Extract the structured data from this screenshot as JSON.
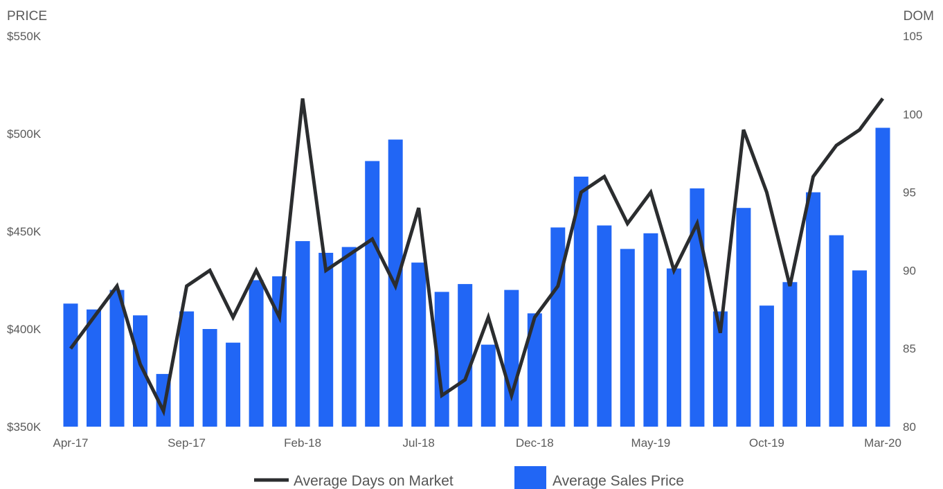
{
  "chart_data": {
    "type": "bar",
    "left_axis_title": "PRICE",
    "right_axis_title": "DOM",
    "left_axis": {
      "min": 350000,
      "max": 550000,
      "ticks": [
        350000,
        400000,
        450000,
        500000,
        550000
      ],
      "tick_labels": [
        "$350K",
        "$400K",
        "$450K",
        "$500K",
        "$550K"
      ]
    },
    "right_axis": {
      "min": 80,
      "max": 105,
      "ticks": [
        80,
        85,
        90,
        95,
        100,
        105
      ],
      "tick_labels": [
        "80",
        "85",
        "90",
        "95",
        "100",
        "105"
      ]
    },
    "categories": [
      "Apr-17",
      "May-17",
      "Jun-17",
      "Jul-17",
      "Aug-17",
      "Sep-17",
      "Oct-17",
      "Nov-17",
      "Dec-17",
      "Jan-18",
      "Feb-18",
      "Mar-18",
      "Apr-18",
      "May-18",
      "Jun-18",
      "Jul-18",
      "Aug-18",
      "Sep-18",
      "Oct-18",
      "Nov-18",
      "Dec-18",
      "Jan-19",
      "Feb-19",
      "Mar-19",
      "Apr-19",
      "May-19",
      "Jun-19",
      "Jul-19",
      "Aug-19",
      "Sep-19",
      "Oct-19",
      "Nov-19",
      "Dec-19",
      "Jan-20",
      "Feb-20",
      "Mar-20"
    ],
    "x_tick_labels": [
      {
        "index": 0,
        "label": "Apr-17"
      },
      {
        "index": 5,
        "label": "Sep-17"
      },
      {
        "index": 10,
        "label": "Feb-18"
      },
      {
        "index": 15,
        "label": "Jul-18"
      },
      {
        "index": 20,
        "label": "Dec-18"
      },
      {
        "index": 25,
        "label": "May-19"
      },
      {
        "index": 30,
        "label": "Oct-19"
      },
      {
        "index": 35,
        "label": "Mar-20"
      }
    ],
    "series": [
      {
        "name": "Average Sales Price",
        "kind": "bar",
        "axis": "left",
        "color": "#2166f5",
        "values": [
          413000,
          410000,
          420000,
          407000,
          377000,
          409000,
          400000,
          393000,
          425000,
          427000,
          445000,
          439000,
          442000,
          486000,
          497000,
          434000,
          419000,
          423000,
          392000,
          420000,
          408000,
          452000,
          478000,
          453000,
          441000,
          449000,
          431000,
          472000,
          409000,
          462000,
          412000,
          424000,
          470000,
          448000,
          430000,
          503000
        ]
      },
      {
        "name": "Average Days on Market",
        "kind": "line",
        "axis": "right",
        "color": "#2b2d2f",
        "values": [
          85,
          87,
          89,
          84,
          81,
          89,
          90,
          87,
          90,
          87,
          101,
          90,
          91,
          92,
          89,
          94,
          82,
          83,
          87,
          82,
          87,
          89,
          95,
          96,
          93,
          95,
          90,
          93,
          86,
          99,
          95,
          89,
          96,
          98,
          99,
          101
        ]
      }
    ],
    "legend": {
      "position": "bottom",
      "items": [
        {
          "label": "Average Days on Market",
          "symbol": "line",
          "color": "#2b2d2f"
        },
        {
          "label": "Average Sales Price",
          "symbol": "box",
          "color": "#2166f5"
        }
      ]
    }
  }
}
